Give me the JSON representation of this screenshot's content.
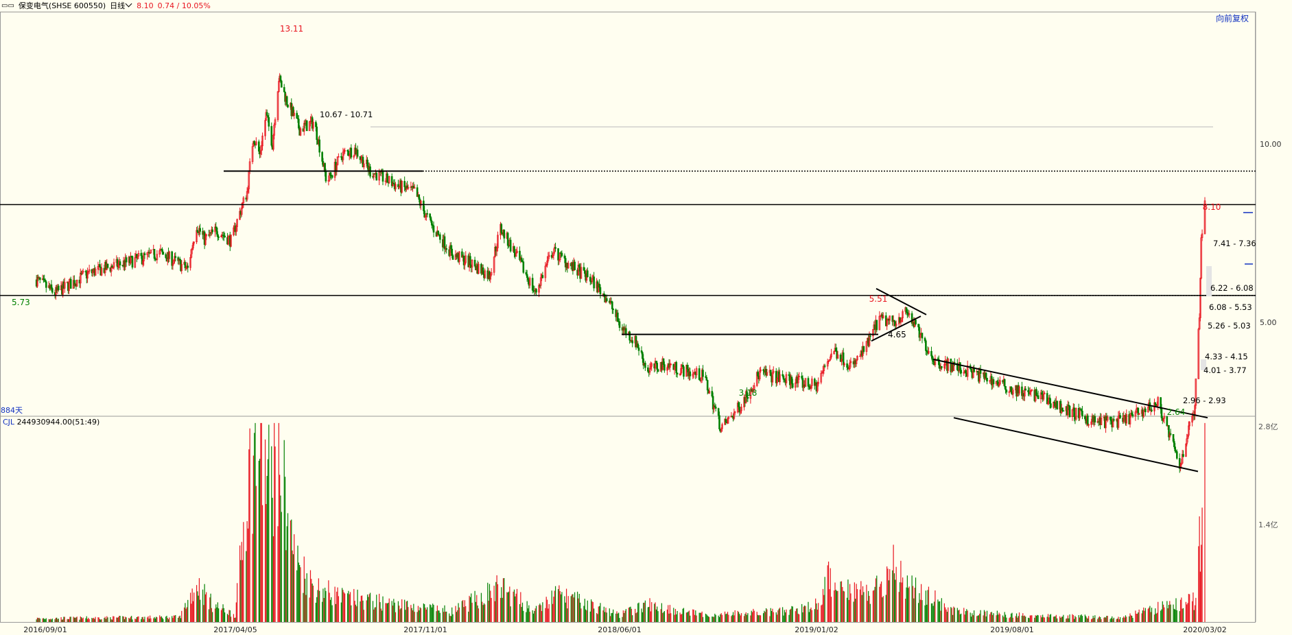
{
  "header": {
    "menu_icon": "list-icon",
    "stock_name": "保变电气(SHSE 600550)",
    "period": "日线",
    "price": "8.10",
    "change": "0.74 / 10.05%"
  },
  "adjust_button": "向前复权",
  "days_label": "884天",
  "volume_header": {
    "name": "CJL",
    "value": "244930944.00(51:49)"
  },
  "colors": {
    "up": "#E8141E",
    "down": "#008000",
    "background": "#FFFEF0",
    "line": "#000000",
    "accent": "#1030C0"
  },
  "chart_data": {
    "type": "candlestick",
    "x_tick_labels": [
      "2016/09/01",
      "2017/04/05",
      "2017/11/01",
      "2018/06/01",
      "2019/01/02",
      "2019/08/01",
      "2020/03/02"
    ],
    "price_axis": {
      "scale": "log",
      "tick_labels": [
        "10.00",
        "5.00"
      ]
    },
    "volume_axis": {
      "tick_labels": [
        "2.8亿",
        "1.4亿"
      ]
    },
    "price_labels": [
      {
        "date": "2016/09/01",
        "value": "5.73",
        "color": "down"
      },
      {
        "date": "2017/05/20",
        "value": "13.11",
        "color": "up"
      },
      {
        "date": "2018/09/20",
        "value": "3.18",
        "color": "down"
      },
      {
        "date": "2019/04/08",
        "value": "5.51",
        "color": "up"
      },
      {
        "date": "2019/04/15",
        "value": "4.65",
        "color": "line"
      },
      {
        "date": "2020/02/03",
        "value": "2.64",
        "color": "down"
      },
      {
        "date": "2020/03/02",
        "value": "8.10",
        "color": "up"
      }
    ],
    "zone_labels": [
      "10.67 - 10.71",
      "7.41 - 7.36",
      "6.22 - 6.08",
      "6.08 - 5.53",
      "5.26 - 5.03",
      "4.33 - 4.15",
      "4.01 - 3.77",
      "2.96 - 2.93"
    ],
    "series": [
      {
        "key": "close",
        "points": [
          [
            "2016/08/22",
            5.9
          ],
          [
            "2016/09/12",
            5.6
          ],
          [
            "2016/10/20",
            6.05
          ],
          [
            "2016/12/01",
            6.3
          ],
          [
            "2017/01/10",
            6.55
          ],
          [
            "2017/02/10",
            6.15
          ],
          [
            "2017/02/20",
            7.3
          ],
          [
            "2017/03/01",
            6.9
          ],
          [
            "2017/03/15",
            7.15
          ],
          [
            "2017/04/01",
            6.85
          ],
          [
            "2017/04/05",
            7.25
          ],
          [
            "2017/04/18",
            8.3
          ],
          [
            "2017/04/25",
            10.3
          ],
          [
            "2017/05/02",
            9.6
          ],
          [
            "2017/05/09",
            11.2
          ],
          [
            "2017/05/16",
            10.0
          ],
          [
            "2017/05/23",
            12.9
          ],
          [
            "2017/06/01",
            11.8
          ],
          [
            "2017/06/15",
            10.6
          ],
          [
            "2017/07/01",
            10.9
          ],
          [
            "2017/07/15",
            8.6
          ],
          [
            "2017/08/01",
            9.6
          ],
          [
            "2017/08/15",
            9.8
          ],
          [
            "2017/09/01",
            9.0
          ],
          [
            "2017/10/01",
            8.5
          ],
          [
            "2017/10/20",
            8.3
          ],
          [
            "2017/11/01",
            7.6
          ],
          [
            "2017/11/10",
            7.2
          ],
          [
            "2017/12/01",
            6.5
          ],
          [
            "2017/12/20",
            6.3
          ],
          [
            "2018/01/10",
            6.0
          ],
          [
            "2018/01/22",
            7.2
          ],
          [
            "2018/02/10",
            6.4
          ],
          [
            "2018/03/01",
            5.6
          ],
          [
            "2018/03/20",
            6.6
          ],
          [
            "2018/04/10",
            6.2
          ],
          [
            "2018/05/01",
            5.9
          ],
          [
            "2018/05/20",
            5.45
          ],
          [
            "2018/06/01",
            4.95
          ],
          [
            "2018/06/20",
            4.6
          ],
          [
            "2018/07/01",
            4.15
          ],
          [
            "2018/07/20",
            4.25
          ],
          [
            "2018/08/10",
            4.15
          ],
          [
            "2018/09/01",
            4.05
          ],
          [
            "2018/09/20",
            3.3
          ],
          [
            "2018/10/10",
            3.6
          ],
          [
            "2018/11/01",
            4.1
          ],
          [
            "2018/12/01",
            4.0
          ],
          [
            "2019/01/02",
            3.9
          ],
          [
            "2019/01/20",
            4.5
          ],
          [
            "2019/02/10",
            4.2
          ],
          [
            "2019/02/25",
            4.55
          ],
          [
            "2019/03/10",
            5.05
          ],
          [
            "2019/03/25",
            5.0
          ],
          [
            "2019/04/10",
            5.2
          ],
          [
            "2019/04/25",
            4.7
          ],
          [
            "2019/05/10",
            4.3
          ],
          [
            "2019/06/01",
            4.2
          ],
          [
            "2019/07/01",
            4.05
          ],
          [
            "2019/08/01",
            3.85
          ],
          [
            "2019/09/01",
            3.75
          ],
          [
            "2019/10/01",
            3.55
          ],
          [
            "2019/11/01",
            3.4
          ],
          [
            "2019/12/01",
            3.4
          ],
          [
            "2020/01/10",
            3.65
          ],
          [
            "2020/02/03",
            2.85
          ],
          [
            "2020/02/20",
            3.6
          ],
          [
            "2020/02/25",
            5.2
          ],
          [
            "2020/02/27",
            6.9
          ],
          [
            "2020/03/02",
            8.1
          ]
        ]
      },
      {
        "key": "volume_yi",
        "points": [
          [
            "2016/08/22",
            0.05
          ],
          [
            "2017/02/01",
            0.07
          ],
          [
            "2017/02/20",
            0.55
          ],
          [
            "2017/03/10",
            0.25
          ],
          [
            "2017/04/05",
            0.1
          ],
          [
            "2017/04/18",
            1.95
          ],
          [
            "2017/04/25",
            2.35
          ],
          [
            "2017/05/02",
            2.55
          ],
          [
            "2017/05/10",
            2.0
          ],
          [
            "2017/05/23",
            2.35
          ],
          [
            "2017/06/10",
            0.9
          ],
          [
            "2017/07/01",
            0.5
          ],
          [
            "2017/08/01",
            0.35
          ],
          [
            "2017/10/01",
            0.25
          ],
          [
            "2017/12/01",
            0.15
          ],
          [
            "2018/01/22",
            0.5
          ],
          [
            "2018/03/01",
            0.15
          ],
          [
            "2018/03/25",
            0.4
          ],
          [
            "2018/06/01",
            0.1
          ],
          [
            "2018/07/01",
            0.25
          ],
          [
            "2018/09/01",
            0.1
          ],
          [
            "2018/12/01",
            0.15
          ],
          [
            "2019/01/02",
            0.25
          ],
          [
            "2019/01/15",
            0.6
          ],
          [
            "2019/03/01",
            0.4
          ],
          [
            "2019/03/25",
            0.8
          ],
          [
            "2019/04/15",
            0.5
          ],
          [
            "2019/06/01",
            0.15
          ],
          [
            "2019/08/01",
            0.1
          ],
          [
            "2019/12/01",
            0.06
          ],
          [
            "2020/01/10",
            0.2
          ],
          [
            "2020/02/20",
            0.3
          ],
          [
            "2020/02/27",
            1.4
          ],
          [
            "2020/03/02",
            2.45
          ]
        ]
      }
    ]
  }
}
